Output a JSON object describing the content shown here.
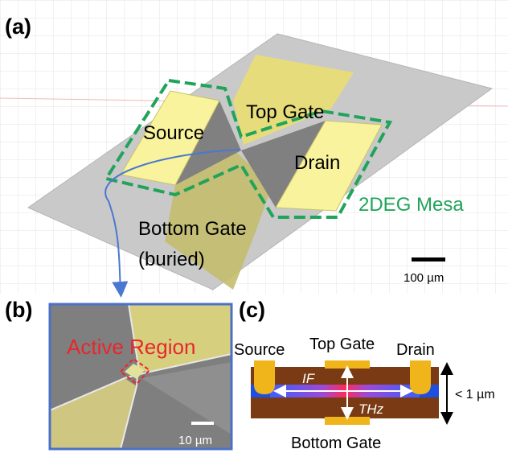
{
  "panel_a": {
    "tag": "(a)",
    "top_gate": "Top Gate",
    "source": "Source",
    "drain": "Drain",
    "mesa": "2DEG Mesa",
    "bottom_gate_line1": "Bottom Gate",
    "bottom_gate_line2": "(buried)",
    "scale": "100 µm"
  },
  "panel_b": {
    "tag": "(b)",
    "active": "Active Region",
    "scale": "10 µm"
  },
  "panel_c": {
    "tag": "(c)",
    "source": "Source",
    "top_gate": "Top Gate",
    "drain": "Drain",
    "if": "IF",
    "thz": "THz",
    "thickness": "< 1 µm",
    "bottom_gate": "Bottom Gate"
  },
  "colors": {
    "gray_plate": "#c8c8c8",
    "yellow": "#f6f29a",
    "gate_olive": "#c9c275",
    "mesa_green": "#21a45a",
    "active_red": "#e8262b",
    "substrate_brown": "#7a3b14",
    "channel_blue": "#1f4fe0",
    "contact_gold": "#f0b51a"
  }
}
